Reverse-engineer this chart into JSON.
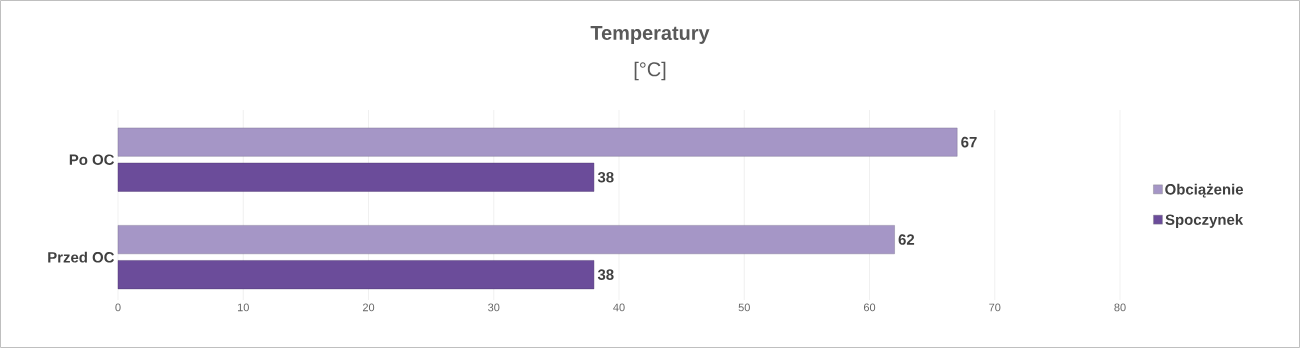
{
  "chart_data": {
    "type": "bar",
    "orientation": "horizontal",
    "title": "Temperatury",
    "subtitle": "[°C]",
    "categories": [
      "Po OC",
      "Przed OC"
    ],
    "series": [
      {
        "name": "Obciążenie",
        "color": "#a596c6",
        "values": [
          67,
          62
        ]
      },
      {
        "name": "Spoczynek",
        "color": "#6b4c9a",
        "values": [
          38,
          38
        ]
      }
    ],
    "xlim": [
      0,
      80
    ],
    "xticks": [
      0,
      10,
      20,
      30,
      40,
      50,
      60,
      70,
      80
    ],
    "grid": "x",
    "legend": "right",
    "data_labels": true
  }
}
